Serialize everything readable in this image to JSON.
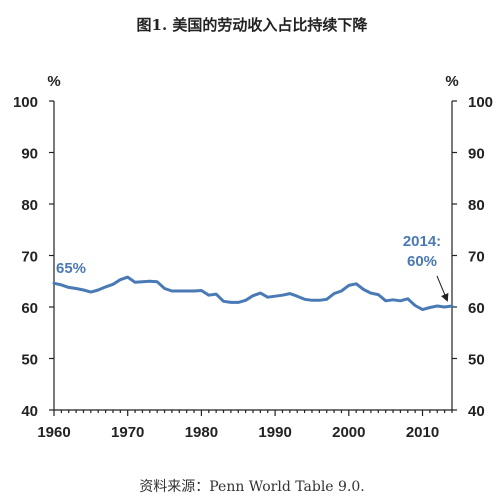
{
  "chart_data": {
    "type": "line",
    "title": "图1. 美国的劳动收入占比持续下降",
    "source": "资料来源：Penn World Table 9.0.",
    "y_unit_left": "%",
    "y_unit_right": "%",
    "xlim": [
      1960,
      2014
    ],
    "ylim": [
      40,
      100
    ],
    "x_ticks": [
      1960,
      1970,
      1980,
      1990,
      2000,
      2010
    ],
    "y_ticks": [
      40,
      50,
      60,
      70,
      80,
      90,
      100
    ],
    "grid": false,
    "line_color": "#4a7ab5",
    "series": [
      {
        "x": [
          1960,
          1961,
          1962,
          1963,
          1964,
          1965,
          1966,
          1967,
          1968,
          1969,
          1970,
          1971,
          1972,
          1973,
          1974,
          1975,
          1976,
          1977,
          1978,
          1979,
          1980,
          1981,
          1982,
          1983,
          1984,
          1985,
          1986,
          1987,
          1988,
          1989,
          1990,
          1991,
          1992,
          1993,
          1994,
          1995,
          1996,
          1997,
          1998,
          1999,
          2000,
          2001,
          2002,
          2003,
          2004,
          2005,
          2006,
          2007,
          2008,
          2009,
          2010,
          2011,
          2012,
          2013,
          2014
        ],
        "values": [
          64.6,
          64.3,
          63.8,
          63.6,
          63.3,
          62.9,
          63.3,
          63.9,
          64.4,
          65.3,
          65.8,
          64.8,
          64.9,
          65.0,
          64.9,
          63.6,
          63.1,
          63.1,
          63.1,
          63.1,
          63.2,
          62.3,
          62.5,
          61.1,
          60.9,
          60.9,
          61.3,
          62.2,
          62.7,
          61.9,
          62.1,
          62.3,
          62.6,
          62.1,
          61.5,
          61.3,
          61.3,
          61.5,
          62.6,
          63.1,
          64.2,
          64.5,
          63.4,
          62.7,
          62.4,
          61.2,
          61.4,
          61.2,
          61.6,
          60.3,
          59.5,
          59.9,
          60.2,
          60.0,
          60.2
        ]
      }
    ],
    "annotations": {
      "start_label": "65%",
      "end_label_line1": "2014:",
      "end_label_line2": "60%"
    }
  }
}
